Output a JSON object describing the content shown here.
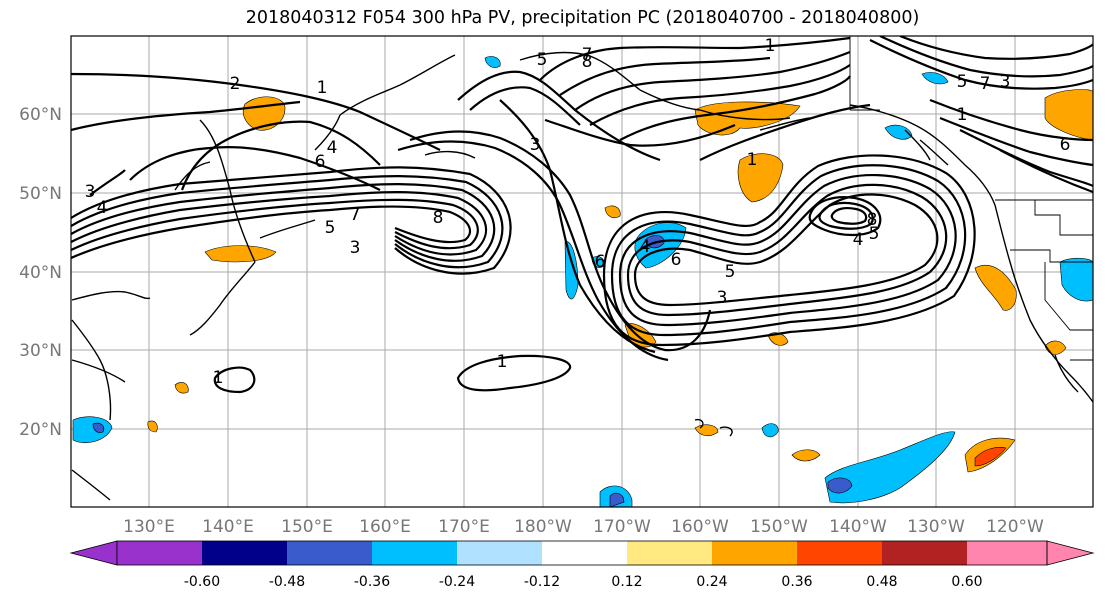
{
  "title": "2018040312 F054 300 hPa PV, precipitation PC (2018040700 - 2018040800)",
  "map": {
    "lat_labels": [
      "60°N",
      "50°N",
      "40°N",
      "30°N",
      "20°N"
    ],
    "lon_labels": [
      "130°E",
      "140°E",
      "150°E",
      "160°E",
      "170°E",
      "180°W",
      "170°W",
      "160°W",
      "150°W",
      "140°W",
      "130°W",
      "120°W"
    ],
    "contour_labels": [
      "2",
      "1",
      "4",
      "6",
      "7",
      "5",
      "3",
      "8",
      "3",
      "4",
      "1",
      "3",
      "5",
      "7",
      "8",
      "1",
      "7",
      "5",
      "3",
      "6",
      "1",
      "4",
      "6",
      "5",
      "3",
      "4",
      "5",
      "8",
      "1",
      "1",
      "6"
    ]
  },
  "colorbar": {
    "tick_labels": [
      "-0.60",
      "-0.48",
      "-0.36",
      "-0.24",
      "-0.12",
      "0.12",
      "0.24",
      "0.36",
      "0.48",
      "0.60"
    ],
    "colors": [
      "#9932CC",
      "#00008B",
      "#3A5BCC",
      "#00BFFF",
      "#B0E2FF",
      "#FFFFFF",
      "#FFE980",
      "#FFA500",
      "#FF4500",
      "#B22222",
      "#FF85AE",
      "#FF85AE"
    ]
  }
}
